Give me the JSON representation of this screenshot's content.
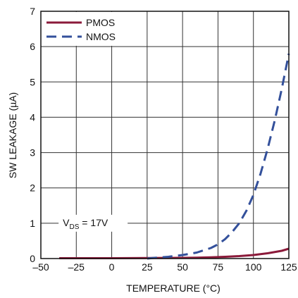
{
  "chart_data": {
    "type": "line",
    "xlabel": "TEMPERATURE (°C)",
    "ylabel": "SW LEAKAGE (µA)",
    "xlim": [
      -50,
      125
    ],
    "ylim": [
      0,
      7
    ],
    "xticks": [
      -50,
      -25,
      0,
      25,
      50,
      75,
      100,
      125
    ],
    "yticks": [
      0,
      1,
      2,
      3,
      4,
      5,
      6,
      7
    ],
    "xtick_labels": [
      "–50",
      "–25",
      "0",
      "25",
      "50",
      "75",
      "100",
      "125"
    ],
    "ytick_labels": [
      "0",
      "1",
      "2",
      "3",
      "4",
      "5",
      "6",
      "7"
    ],
    "grid": true,
    "legend_position": "top-left",
    "series": [
      {
        "name": "PMOS",
        "color": "#8b1a3a",
        "style": "solid",
        "x": [
          -37,
          -25,
          0,
          25,
          50,
          60,
          70,
          80,
          90,
          100,
          110,
          120,
          125
        ],
        "y": [
          0.01,
          0.01,
          0.01,
          0.015,
          0.02,
          0.025,
          0.035,
          0.05,
          0.07,
          0.1,
          0.15,
          0.22,
          0.28
        ]
      },
      {
        "name": "NMOS",
        "color": "#33509b",
        "style": "dashed",
        "x": [
          25,
          30,
          40,
          50,
          60,
          70,
          75,
          80,
          85,
          90,
          95,
          100,
          105,
          110,
          115,
          120,
          125
        ],
        "y": [
          0.0,
          0.02,
          0.05,
          0.1,
          0.17,
          0.3,
          0.4,
          0.55,
          0.75,
          1.0,
          1.35,
          1.8,
          2.4,
          3.1,
          3.9,
          4.8,
          5.8
        ]
      }
    ],
    "annotation": {
      "prefix": "V",
      "sub": "DS",
      "suffix": " = 17V",
      "x": -37.5,
      "y": 1
    }
  }
}
